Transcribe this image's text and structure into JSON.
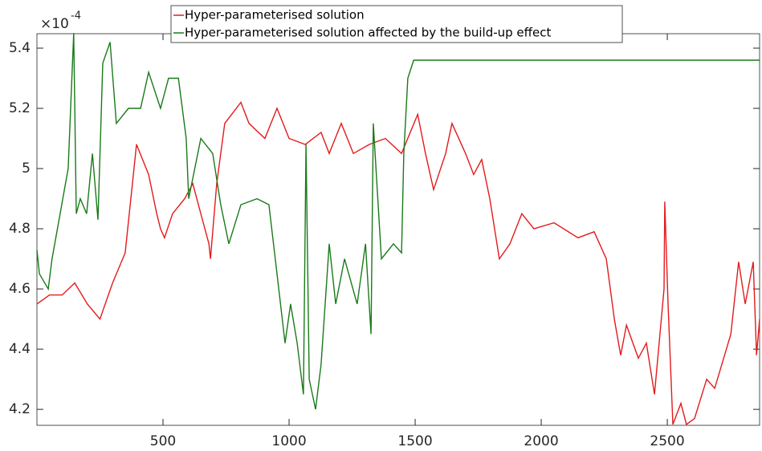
{
  "chart_data": {
    "type": "line",
    "exponent_base": "×10",
    "exponent": "-4",
    "xlim": [
      0,
      2866
    ],
    "ylim": [
      4.147,
      5.448
    ],
    "xticks": [
      500,
      1000,
      1500,
      2000,
      2500
    ],
    "yticks": [
      4.2,
      4.4,
      4.6,
      4.8,
      5,
      5.2,
      5.4
    ],
    "grid": false,
    "legend": "top",
    "series": [
      {
        "name": "Hyper-parameterised solution",
        "color": "#e41a1c",
        "x": [
          0,
          50,
          100,
          150,
          200,
          250,
          300,
          350,
          395,
          443,
          475,
          490,
          506,
          538,
          586,
          618,
          650,
          682,
          688,
          713,
          745,
          809,
          841,
          904,
          952,
          1000,
          1064,
          1127,
          1159,
          1207,
          1255,
          1318,
          1382,
          1446,
          1510,
          1541,
          1573,
          1621,
          1646,
          1700,
          1732,
          1764,
          1796,
          1834,
          1876,
          1923,
          1971,
          2051,
          2146,
          2210,
          2258,
          2290,
          2315,
          2338,
          2385,
          2417,
          2449,
          2487,
          2490,
          2503,
          2522,
          2554,
          2576,
          2608,
          2656,
          2688,
          2752,
          2783,
          2809,
          2841,
          2854,
          2866
        ],
        "values": [
          4.55,
          4.58,
          4.58,
          4.62,
          4.55,
          4.5,
          4.62,
          4.72,
          5.08,
          4.98,
          4.85,
          4.8,
          4.77,
          4.85,
          4.9,
          4.95,
          4.85,
          4.75,
          4.7,
          4.95,
          5.15,
          5.22,
          5.15,
          5.1,
          5.2,
          5.1,
          5.08,
          5.12,
          5.05,
          5.15,
          5.05,
          5.08,
          5.1,
          5.05,
          5.18,
          5.05,
          4.93,
          5.05,
          5.15,
          5.05,
          4.98,
          5.03,
          4.9,
          4.7,
          4.75,
          4.85,
          4.8,
          4.82,
          4.77,
          4.79,
          4.7,
          4.5,
          4.38,
          4.48,
          4.37,
          4.42,
          4.25,
          4.6,
          4.89,
          4.55,
          4.15,
          4.22,
          4.15,
          4.17,
          4.3,
          4.27,
          4.45,
          4.69,
          4.55,
          4.69,
          4.38,
          4.5
        ]
      },
      {
        "name": "Hyper-parameterised solution affected by the build-up effect",
        "color": "#1a7a1a",
        "x": [
          0,
          10,
          45,
          60,
          92,
          124,
          146,
          156,
          172,
          197,
          220,
          242,
          261,
          290,
          315,
          363,
          411,
          443,
          490,
          522,
          561,
          592,
          602,
          650,
          697,
          729,
          761,
          809,
          873,
          920,
          952,
          984,
          1006,
          1032,
          1057,
          1067,
          1080,
          1105,
          1127,
          1159,
          1185,
          1220,
          1270,
          1303,
          1325,
          1334,
          1366,
          1414,
          1446,
          1455,
          1471,
          1494,
          2866
        ],
        "values": [
          4.73,
          4.65,
          4.6,
          4.7,
          4.85,
          5.0,
          5.45,
          4.85,
          4.9,
          4.85,
          5.05,
          4.83,
          5.35,
          5.42,
          5.15,
          5.2,
          5.2,
          5.32,
          5.2,
          5.3,
          5.3,
          5.1,
          4.9,
          5.1,
          5.05,
          4.88,
          4.75,
          4.88,
          4.9,
          4.88,
          4.65,
          4.42,
          4.55,
          4.42,
          4.25,
          5.08,
          4.3,
          4.2,
          4.35,
          4.75,
          4.55,
          4.7,
          4.55,
          4.75,
          4.45,
          5.15,
          4.7,
          4.75,
          4.72,
          5.05,
          5.3,
          5.36,
          5.36
        ]
      }
    ]
  }
}
